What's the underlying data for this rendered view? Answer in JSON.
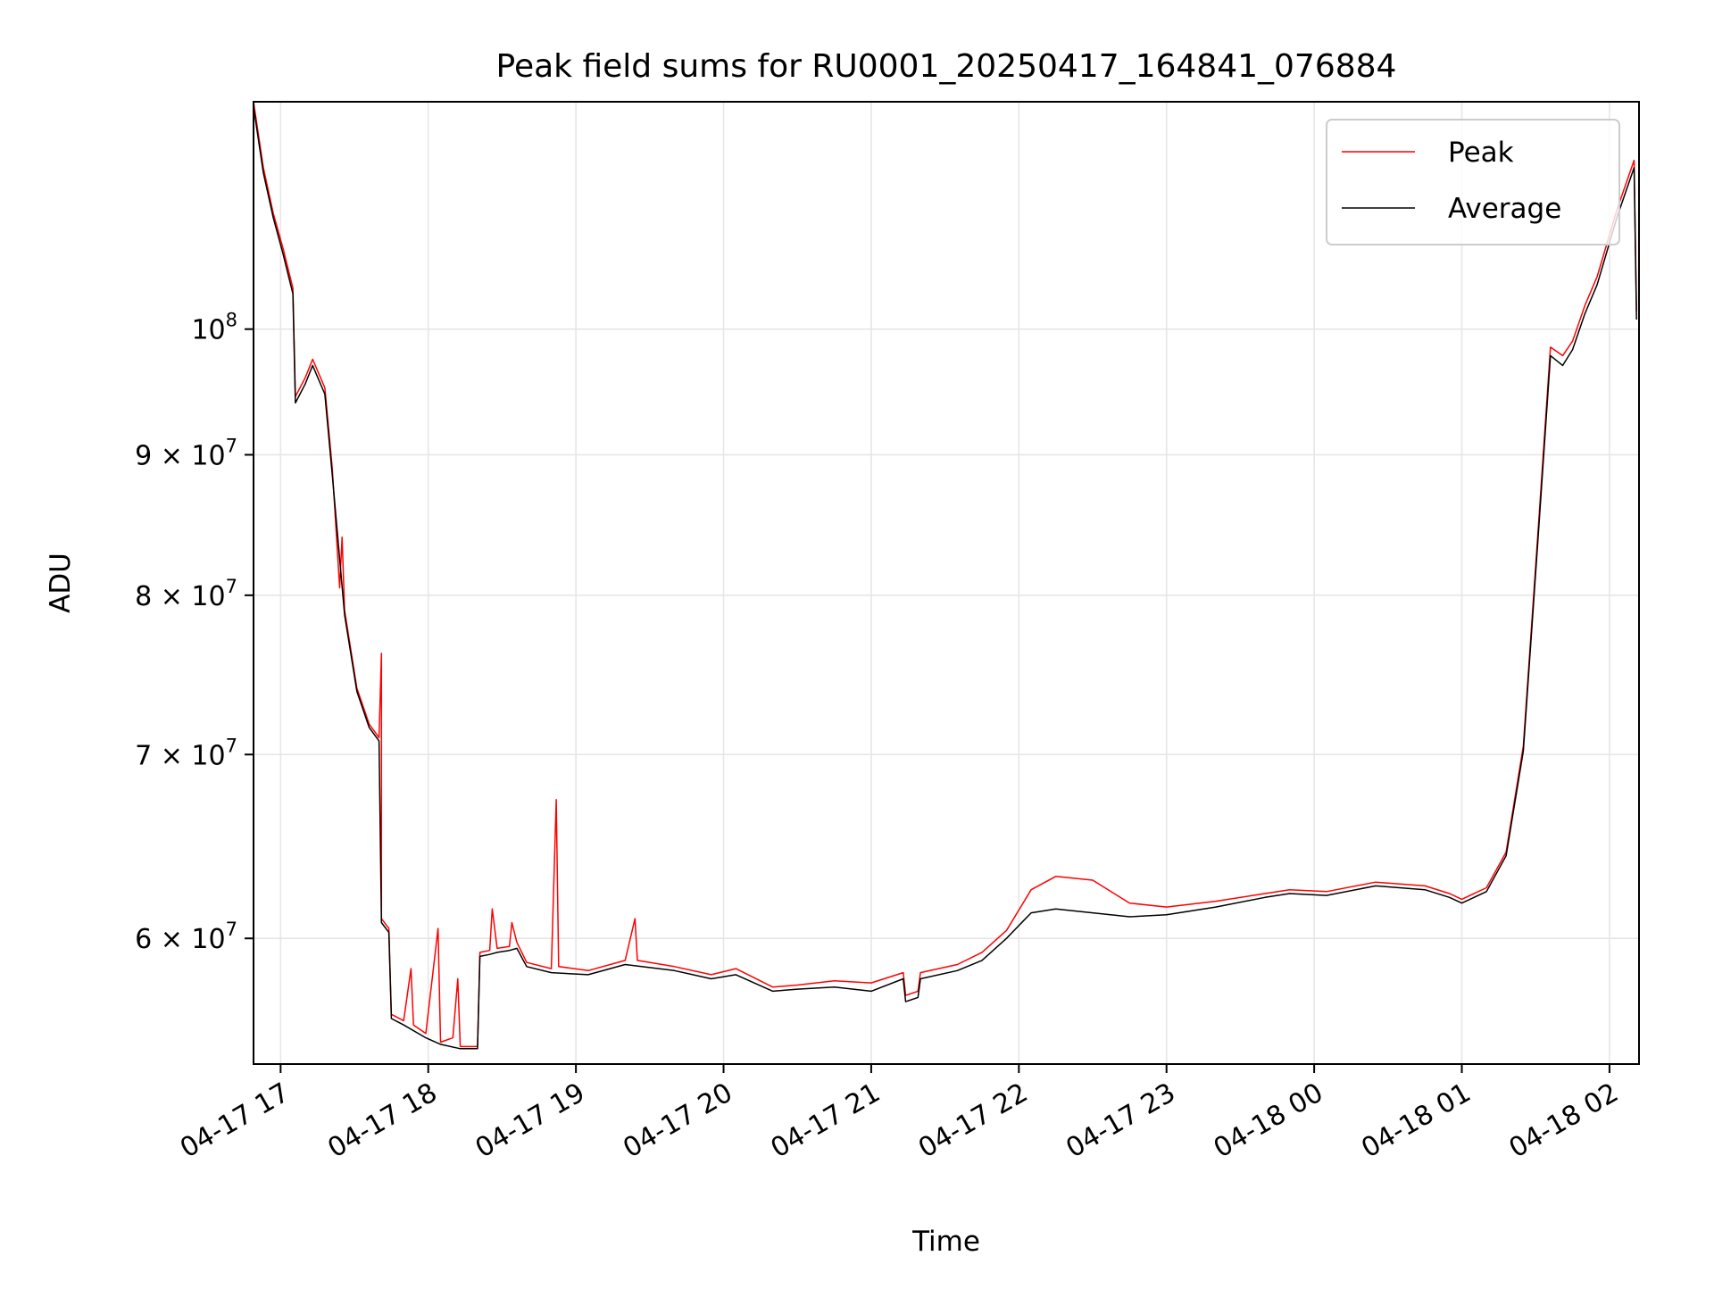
{
  "chart_data": {
    "type": "line",
    "title": "Peak field sums for RU0001_20250417_164841_076884",
    "xlabel": "Time",
    "ylabel": "ADU",
    "x_scale": "time",
    "y_scale": "log",
    "xlim": [
      "2025-04-17 16:49",
      "2025-04-18 02:12"
    ],
    "ylim": [
      54000000,
      121000000
    ],
    "x_ticks": [
      {
        "value": "2025-04-17 17:00",
        "label": "04-17 17"
      },
      {
        "value": "2025-04-17 18:00",
        "label": "04-17 18"
      },
      {
        "value": "2025-04-17 19:00",
        "label": "04-17 19"
      },
      {
        "value": "2025-04-17 20:00",
        "label": "04-17 20"
      },
      {
        "value": "2025-04-17 21:00",
        "label": "04-17 21"
      },
      {
        "value": "2025-04-17 22:00",
        "label": "04-17 22"
      },
      {
        "value": "2025-04-17 23:00",
        "label": "04-17 23"
      },
      {
        "value": "2025-04-18 00:00",
        "label": "04-18 00"
      },
      {
        "value": "2025-04-18 01:00",
        "label": "04-18 01"
      },
      {
        "value": "2025-04-18 02:00",
        "label": "04-18 02"
      }
    ],
    "y_ticks": [
      {
        "value": 60000000,
        "base": "6 × 10",
        "exp": "7"
      },
      {
        "value": 70000000,
        "base": "7 × 10",
        "exp": "7"
      },
      {
        "value": 80000000,
        "base": "8 × 10",
        "exp": "7"
      },
      {
        "value": 90000000,
        "base": "9 × 10",
        "exp": "7"
      },
      {
        "value": 100000000,
        "base": "10",
        "exp": "8"
      }
    ],
    "grid": true,
    "legend_position": "top-right",
    "series": [
      {
        "name": "Peak",
        "color": "#ff0000",
        "points": [
          [
            "2025-04-17 16:49",
            121000000
          ],
          [
            "2025-04-17 16:53",
            114500000
          ],
          [
            "2025-04-17 16:57",
            110200000
          ],
          [
            "2025-04-17 17:01",
            107000000
          ],
          [
            "2025-04-17 17:05",
            103500000
          ],
          [
            "2025-04-17 17:06",
            94500000
          ],
          [
            "2025-04-17 17:10",
            96000000
          ],
          [
            "2025-04-17 17:13",
            97500000
          ],
          [
            "2025-04-17 17:18",
            95200000
          ],
          [
            "2025-04-17 17:21",
            89000000
          ],
          [
            "2025-04-17 17:24",
            80500000
          ],
          [
            "2025-04-17 17:25",
            84000000
          ],
          [
            "2025-04-17 17:26",
            79000000
          ],
          [
            "2025-04-17 17:31",
            74000000
          ],
          [
            "2025-04-17 17:36",
            71800000
          ],
          [
            "2025-04-17 17:40",
            71000000
          ],
          [
            "2025-04-17 17:41",
            76200000
          ],
          [
            "2025-04-17 17:41",
            61000000
          ],
          [
            "2025-04-17 17:44",
            60500000
          ],
          [
            "2025-04-17 17:45",
            56300000
          ],
          [
            "2025-04-17 17:50",
            56000000
          ],
          [
            "2025-04-17 17:53",
            58500000
          ],
          [
            "2025-04-17 17:54",
            55800000
          ],
          [
            "2025-04-17 17:59",
            55400000
          ],
          [
            "2025-04-17 18:04",
            60500000
          ],
          [
            "2025-04-17 18:05",
            55000000
          ],
          [
            "2025-04-17 18:10",
            55200000
          ],
          [
            "2025-04-17 18:12",
            58000000
          ],
          [
            "2025-04-17 18:13",
            54800000
          ],
          [
            "2025-04-17 18:20",
            54800000
          ],
          [
            "2025-04-17 18:21",
            59300000
          ],
          [
            "2025-04-17 18:25",
            59400000
          ],
          [
            "2025-04-17 18:26",
            61500000
          ],
          [
            "2025-04-17 18:28",
            59500000
          ],
          [
            "2025-04-17 18:33",
            59600000
          ],
          [
            "2025-04-17 18:34",
            60800000
          ],
          [
            "2025-04-17 18:36",
            59800000
          ],
          [
            "2025-04-17 18:40",
            58800000
          ],
          [
            "2025-04-17 18:50",
            58500000
          ],
          [
            "2025-04-17 18:52",
            67400000
          ],
          [
            "2025-04-17 18:53",
            58600000
          ],
          [
            "2025-04-17 19:05",
            58400000
          ],
          [
            "2025-04-17 19:20",
            58900000
          ],
          [
            "2025-04-17 19:24",
            61000000
          ],
          [
            "2025-04-17 19:25",
            58900000
          ],
          [
            "2025-04-17 19:40",
            58600000
          ],
          [
            "2025-04-17 19:55",
            58200000
          ],
          [
            "2025-04-17 20:05",
            58500000
          ],
          [
            "2025-04-17 20:20",
            57600000
          ],
          [
            "2025-04-17 20:30",
            57700000
          ],
          [
            "2025-04-17 20:45",
            57900000
          ],
          [
            "2025-04-17 21:00",
            57800000
          ],
          [
            "2025-04-17 21:13",
            58300000
          ],
          [
            "2025-04-17 21:14",
            57200000
          ],
          [
            "2025-04-17 21:19",
            57400000
          ],
          [
            "2025-04-17 21:20",
            58300000
          ],
          [
            "2025-04-17 21:35",
            58700000
          ],
          [
            "2025-04-17 21:45",
            59300000
          ],
          [
            "2025-04-17 21:55",
            60400000
          ],
          [
            "2025-04-17 22:05",
            62500000
          ],
          [
            "2025-04-17 22:15",
            63200000
          ],
          [
            "2025-04-17 22:30",
            63000000
          ],
          [
            "2025-04-17 22:45",
            61800000
          ],
          [
            "2025-04-17 23:00",
            61600000
          ],
          [
            "2025-04-17 23:20",
            61900000
          ],
          [
            "2025-04-17 23:40",
            62300000
          ],
          [
            "2025-04-17 23:50",
            62500000
          ],
          [
            "2025-04-18 00:05",
            62400000
          ],
          [
            "2025-04-18 00:25",
            62900000
          ],
          [
            "2025-04-18 00:45",
            62700000
          ],
          [
            "2025-04-18 00:55",
            62300000
          ],
          [
            "2025-04-18 01:00",
            62000000
          ],
          [
            "2025-04-18 01:10",
            62600000
          ],
          [
            "2025-04-18 01:18",
            64500000
          ],
          [
            "2025-04-18 01:25",
            70500000
          ],
          [
            "2025-04-18 01:31",
            84500000
          ],
          [
            "2025-04-18 01:36",
            98500000
          ],
          [
            "2025-04-18 01:41",
            97800000
          ],
          [
            "2025-04-18 01:45",
            99000000
          ],
          [
            "2025-04-18 01:50",
            102000000
          ],
          [
            "2025-04-18 01:55",
            104500000
          ],
          [
            "2025-04-18 02:03",
            110500000
          ],
          [
            "2025-04-18 02:10",
            115200000
          ],
          [
            "2025-04-18 02:11",
            101500000
          ]
        ]
      },
      {
        "name": "Average",
        "color": "#000000",
        "points": [
          [
            "2025-04-17 16:49",
            120500000
          ],
          [
            "2025-04-17 16:53",
            114000000
          ],
          [
            "2025-04-17 16:57",
            109800000
          ],
          [
            "2025-04-17 17:01",
            106500000
          ],
          [
            "2025-04-17 17:05",
            103000000
          ],
          [
            "2025-04-17 17:06",
            94000000
          ],
          [
            "2025-04-17 17:10",
            95500000
          ],
          [
            "2025-04-17 17:13",
            97000000
          ],
          [
            "2025-04-17 17:18",
            94700000
          ],
          [
            "2025-04-17 17:21",
            88500000
          ],
          [
            "2025-04-17 17:26",
            78700000
          ],
          [
            "2025-04-17 17:31",
            73800000
          ],
          [
            "2025-04-17 17:36",
            71600000
          ],
          [
            "2025-04-17 17:40",
            70800000
          ],
          [
            "2025-04-17 17:41",
            60800000
          ],
          [
            "2025-04-17 17:44",
            60300000
          ],
          [
            "2025-04-17 17:45",
            56100000
          ],
          [
            "2025-04-17 17:50",
            55800000
          ],
          [
            "2025-04-17 17:59",
            55200000
          ],
          [
            "2025-04-17 18:05",
            54900000
          ],
          [
            "2025-04-17 18:13",
            54700000
          ],
          [
            "2025-04-17 18:20",
            54700000
          ],
          [
            "2025-04-17 18:21",
            59100000
          ],
          [
            "2025-04-17 18:25",
            59200000
          ],
          [
            "2025-04-17 18:28",
            59300000
          ],
          [
            "2025-04-17 18:33",
            59400000
          ],
          [
            "2025-04-17 18:36",
            59500000
          ],
          [
            "2025-04-17 18:40",
            58600000
          ],
          [
            "2025-04-17 18:50",
            58300000
          ],
          [
            "2025-04-17 19:05",
            58200000
          ],
          [
            "2025-04-17 19:20",
            58700000
          ],
          [
            "2025-04-17 19:40",
            58400000
          ],
          [
            "2025-04-17 19:55",
            58000000
          ],
          [
            "2025-04-17 20:05",
            58200000
          ],
          [
            "2025-04-17 20:20",
            57400000
          ],
          [
            "2025-04-17 20:30",
            57500000
          ],
          [
            "2025-04-17 20:45",
            57600000
          ],
          [
            "2025-04-17 21:00",
            57400000
          ],
          [
            "2025-04-17 21:13",
            58000000
          ],
          [
            "2025-04-17 21:14",
            56900000
          ],
          [
            "2025-04-17 21:19",
            57100000
          ],
          [
            "2025-04-17 21:20",
            58000000
          ],
          [
            "2025-04-17 21:35",
            58400000
          ],
          [
            "2025-04-17 21:45",
            58900000
          ],
          [
            "2025-04-17 21:55",
            60000000
          ],
          [
            "2025-04-17 22:05",
            61300000
          ],
          [
            "2025-04-17 22:15",
            61500000
          ],
          [
            "2025-04-17 22:30",
            61300000
          ],
          [
            "2025-04-17 22:45",
            61100000
          ],
          [
            "2025-04-17 23:00",
            61200000
          ],
          [
            "2025-04-17 23:20",
            61600000
          ],
          [
            "2025-04-17 23:40",
            62100000
          ],
          [
            "2025-04-17 23:50",
            62300000
          ],
          [
            "2025-04-18 00:05",
            62200000
          ],
          [
            "2025-04-18 00:25",
            62700000
          ],
          [
            "2025-04-18 00:45",
            62500000
          ],
          [
            "2025-04-18 00:55",
            62100000
          ],
          [
            "2025-04-18 01:00",
            61800000
          ],
          [
            "2025-04-18 01:10",
            62400000
          ],
          [
            "2025-04-18 01:18",
            64300000
          ],
          [
            "2025-04-18 01:25",
            70200000
          ],
          [
            "2025-04-18 01:31",
            84000000
          ],
          [
            "2025-04-18 01:36",
            97800000
          ],
          [
            "2025-04-18 01:41",
            97000000
          ],
          [
            "2025-04-18 01:45",
            98300000
          ],
          [
            "2025-04-18 01:50",
            101300000
          ],
          [
            "2025-04-18 01:55",
            103800000
          ],
          [
            "2025-04-18 02:03",
            109800000
          ],
          [
            "2025-04-18 02:10",
            114500000
          ],
          [
            "2025-04-18 02:11",
            100800000
          ]
        ]
      }
    ]
  }
}
